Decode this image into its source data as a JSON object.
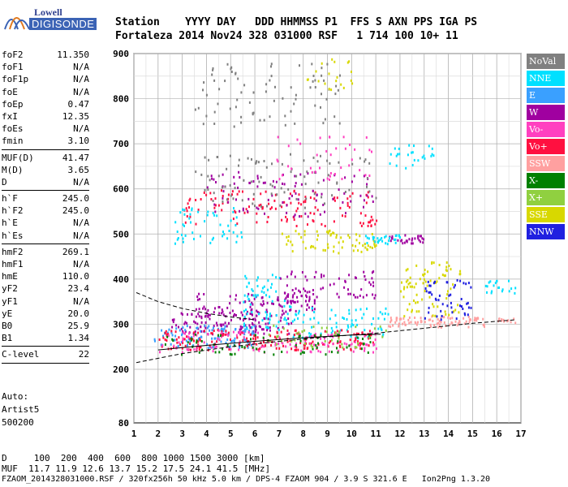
{
  "logo": {
    "line1": "Lowell",
    "line2": "DIGISONDE"
  },
  "header": {
    "line1": "Station    YYYY DAY   DDD HHMMSS P1  FFS S AXN PPS IGA PS",
    "line2": "Fortaleza 2014 Nov24 328 031000 RSF   1 714 100 10+ 11"
  },
  "params": {
    "group1": [
      {
        "name": "foF2",
        "value": "11.350"
      },
      {
        "name": "foF1",
        "value": "N/A"
      },
      {
        "name": "foF1p",
        "value": "N/A"
      },
      {
        "name": "foE",
        "value": "N/A"
      },
      {
        "name": "foEp",
        "value": "0.47"
      },
      {
        "name": "fxI",
        "value": "12.35"
      },
      {
        "name": "foEs",
        "value": "N/A"
      },
      {
        "name": "fmin",
        "value": "3.10"
      }
    ],
    "group2": [
      {
        "name": "MUF(D)",
        "value": "41.47"
      },
      {
        "name": "M(D)",
        "value": "3.65"
      },
      {
        "name": "D",
        "value": "N/A"
      }
    ],
    "group3": [
      {
        "name": "h`F",
        "value": "245.0"
      },
      {
        "name": "h`F2",
        "value": "245.0"
      },
      {
        "name": "h`E",
        "value": "N/A"
      },
      {
        "name": "h`Es",
        "value": "N/A"
      }
    ],
    "group4": [
      {
        "name": "hmF2",
        "value": "269.1"
      },
      {
        "name": "hmF1",
        "value": "N/A"
      },
      {
        "name": "hmE",
        "value": "110.0"
      },
      {
        "name": "yF2",
        "value": "23.4"
      },
      {
        "name": "yF1",
        "value": "N/A"
      },
      {
        "name": "yE",
        "value": "20.0"
      },
      {
        "name": "B0",
        "value": "25.9"
      },
      {
        "name": "B1",
        "value": "1.34"
      }
    ],
    "group5": [
      {
        "name": "C-level",
        "value": "22"
      }
    ]
  },
  "auto": {
    "line1": "Auto:",
    "line2": "Artist5",
    "line3": "500200"
  },
  "legend": [
    {
      "label": "NoVal",
      "color": "#808080"
    },
    {
      "label": "NNE",
      "color": "#00e0ff"
    },
    {
      "label": "E",
      "color": "#3aa0ff"
    },
    {
      "label": "W",
      "color": "#a000a0"
    },
    {
      "label": "Vo-",
      "color": "#ff40c0"
    },
    {
      "label": "Vo+",
      "color": "#ff1040"
    },
    {
      "label": "SSW",
      "color": "#ffa0a0"
    },
    {
      "label": "X-",
      "color": "#008000"
    },
    {
      "label": "X+",
      "color": "#90d040"
    },
    {
      "label": "SSE",
      "color": "#d8d800"
    },
    {
      "label": "NNW",
      "color": "#2020e0"
    }
  ],
  "footer": {
    "line1": "D     100  200  400  600  800 1000 1500 3000 [km]",
    "line2": "MUF  11.7 11.9 12.6 13.7 15.2 17.5 24.1 41.5 [MHz]",
    "line3": "FZAOM_2014328031000.RSF / 320fx256h 50 kHz 5.0 km / DPS-4 FZAOM 904 / 3.9 S 321.6 E   Ion2Png 1.3.20"
  },
  "chart_data": {
    "type": "scatter",
    "title": "",
    "xlabel": "",
    "ylabel": "",
    "xlim": [
      1,
      17
    ],
    "ylim": [
      80,
      900
    ],
    "x_ticks": [
      1,
      2,
      3,
      4,
      5,
      6,
      7,
      8,
      9,
      10,
      11,
      12,
      13,
      14,
      15,
      16,
      17
    ],
    "y_ticks": [
      80,
      200,
      300,
      400,
      500,
      600,
      700,
      800,
      900
    ],
    "grid": true,
    "legend_position": "right",
    "regions": [
      {
        "mode": "W",
        "x": [
          2.5,
          7.5
        ],
        "y": [
          280,
          330
        ],
        "n": 140
      },
      {
        "mode": "W",
        "x": [
          3.5,
          7.0
        ],
        "y": [
          330,
          370
        ],
        "n": 50
      },
      {
        "mode": "W",
        "x": [
          7.0,
          8.5
        ],
        "y": [
          330,
          380
        ],
        "n": 50
      },
      {
        "mode": "E",
        "x": [
          1.8,
          6.0
        ],
        "y": [
          250,
          300
        ],
        "n": 110
      },
      {
        "mode": "NNE",
        "x": [
          5.5,
          7.5
        ],
        "y": [
          290,
          420
        ],
        "n": 70
      },
      {
        "mode": "NNE",
        "x": [
          7.5,
          11.5
        ],
        "y": [
          270,
          340
        ],
        "n": 70
      },
      {
        "mode": "Vo+",
        "x": [
          2.0,
          11.0
        ],
        "y": [
          245,
          290
        ],
        "n": 180
      },
      {
        "mode": "Vo-",
        "x": [
          2.0,
          11.0
        ],
        "y": [
          240,
          290
        ],
        "n": 120
      },
      {
        "mode": "X-",
        "x": [
          2.0,
          11.0
        ],
        "y": [
          235,
          280
        ],
        "n": 70
      },
      {
        "mode": "X+",
        "x": [
          6.5,
          11.5
        ],
        "y": [
          250,
          300
        ],
        "n": 40
      },
      {
        "mode": "SSW",
        "x": [
          11.5,
          15.5
        ],
        "y": [
          295,
          320
        ],
        "n": 90
      },
      {
        "mode": "SSE",
        "x": [
          12.0,
          14.5
        ],
        "y": [
          320,
          440
        ],
        "n": 80
      },
      {
        "mode": "NNW",
        "x": [
          13.0,
          15.0
        ],
        "y": [
          310,
          400
        ],
        "n": 50
      },
      {
        "mode": "W",
        "x": [
          7.0,
          11.0
        ],
        "y": [
          360,
          420
        ],
        "n": 60
      },
      {
        "mode": "SSE",
        "x": [
          7.0,
          11.0
        ],
        "y": [
          460,
          510
        ],
        "n": 70
      },
      {
        "mode": "W",
        "x": [
          11.5,
          13.0
        ],
        "y": [
          480,
          500
        ],
        "n": 30
      },
      {
        "mode": "NNE",
        "x": [
          10.5,
          12.0
        ],
        "y": [
          480,
          500
        ],
        "n": 30
      },
      {
        "mode": "Vo+",
        "x": [
          3.0,
          11.0
        ],
        "y": [
          520,
          600
        ],
        "n": 130
      },
      {
        "mode": "W",
        "x": [
          4.0,
          11.0
        ],
        "y": [
          540,
          640
        ],
        "n": 90
      },
      {
        "mode": "NNE",
        "x": [
          2.5,
          5.5
        ],
        "y": [
          480,
          560
        ],
        "n": 50
      },
      {
        "mode": "NoVal",
        "x": [
          3.5,
          11.0
        ],
        "y": [
          560,
          680
        ],
        "n": 90
      },
      {
        "mode": "Vo-",
        "x": [
          6.5,
          11.0
        ],
        "y": [
          620,
          720
        ],
        "n": 40
      },
      {
        "mode": "NoVal",
        "x": [
          3.5,
          9.5
        ],
        "y": [
          740,
          880
        ],
        "n": 80
      },
      {
        "mode": "SSE",
        "x": [
          8.0,
          10.0
        ],
        "y": [
          820,
          900
        ],
        "n": 20
      },
      {
        "mode": "NNE",
        "x": [
          11.5,
          13.5
        ],
        "y": [
          640,
          700
        ],
        "n": 25
      },
      {
        "mode": "NNE",
        "x": [
          15.5,
          16.8
        ],
        "y": [
          370,
          400
        ],
        "n": 20
      },
      {
        "mode": "SSW",
        "x": [
          16.0,
          16.8
        ],
        "y": [
          305,
          315
        ],
        "n": 12
      }
    ],
    "traces": [
      {
        "name": "trace",
        "style": "dashed",
        "points": [
          [
            1.1,
            215
          ],
          [
            3,
            235
          ],
          [
            5,
            250
          ],
          [
            7,
            262
          ],
          [
            9,
            272
          ],
          [
            11,
            280
          ],
          [
            13,
            291
          ],
          [
            15,
            302
          ],
          [
            16.8,
            310
          ]
        ]
      },
      {
        "name": "trace",
        "style": "dashed",
        "points": [
          [
            1.1,
            370
          ],
          [
            2,
            350
          ],
          [
            3,
            335
          ],
          [
            4,
            324
          ],
          [
            5,
            316
          ],
          [
            6,
            310
          ]
        ]
      },
      {
        "name": "trace",
        "style": "solid",
        "points": [
          [
            2.0,
            243
          ],
          [
            4,
            253
          ],
          [
            6,
            262
          ],
          [
            8,
            270
          ],
          [
            10,
            276
          ],
          [
            11.2,
            278
          ]
        ]
      }
    ]
  }
}
